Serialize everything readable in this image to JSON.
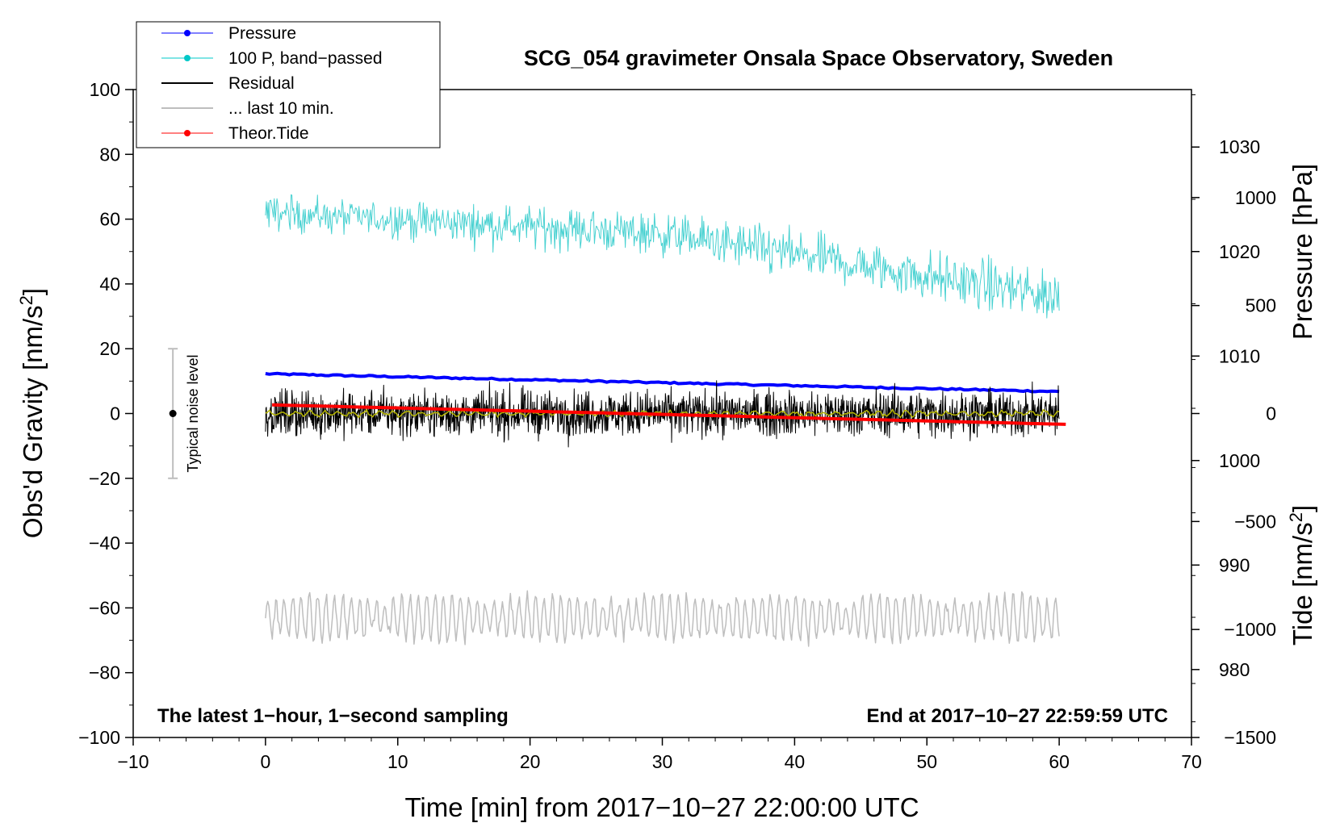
{
  "chart_data": {
    "type": "line",
    "title": "SCG_054 gravimeter Onsala Space Observatory, Sweden",
    "xlabel": "Time [min] from 2017−10−27 22:00:00 UTC",
    "ylabel_main": "Obs'd Gravity [nm/s",
    "ylabel_pressure": "Pressure [hPa]",
    "ylabel_tide": "Tide [nm/s",
    "unit_superscript": "2",
    "unit_close": "]",
    "xlim": [
      -10,
      70
    ],
    "ylim": [
      -100,
      100
    ],
    "pressure_ylim": [
      973.5,
      1035.5
    ],
    "tide_ylim": [
      -1500,
      1500
    ],
    "x_ticks": [
      -10,
      0,
      10,
      20,
      30,
      40,
      50,
      60,
      70
    ],
    "x_tick_labels": [
      "−10",
      "0",
      "10",
      "20",
      "30",
      "40",
      "50",
      "60",
      "70"
    ],
    "y_ticks": [
      -100,
      -80,
      -60,
      -40,
      -20,
      0,
      20,
      40,
      60,
      80,
      100
    ],
    "y_tick_labels": [
      "−100",
      "−80",
      "−60",
      "−40",
      "−20",
      "0",
      "20",
      "40",
      "60",
      "80",
      "100"
    ],
    "pressure_ticks": [
      980,
      990,
      1000,
      1010,
      1020,
      1030
    ],
    "pressure_tick_labels": [
      "980",
      "990",
      "1000",
      "1010",
      "1020",
      "1030"
    ],
    "tide_ticks": [
      -1500,
      -1000,
      -500,
      0,
      500,
      1000
    ],
    "tide_tick_labels": [
      "−1500",
      "−1000",
      "−500",
      "0",
      "500",
      "1000"
    ],
    "legend": [
      {
        "label": "Pressure",
        "color": "#0000ff",
        "marker": true
      },
      {
        "label": "100 P, band−passed",
        "color": "#00c8c8",
        "marker": true
      },
      {
        "label": "Residual",
        "color": "#000000",
        "marker": false
      },
      {
        "label": "... last 10 min.",
        "color": "#bebebe",
        "marker": false
      },
      {
        "label": "Theor.Tide",
        "color": "#ff0000",
        "marker": true
      }
    ],
    "annotations": {
      "bottom_left": "The latest 1−hour, 1−second sampling",
      "bottom_right": "End at 2017−10−27 22:59:59 UTC",
      "noise_label": "Typical noise level"
    },
    "noise_bar": {
      "x": -7,
      "center": 0,
      "low": -20,
      "high": 20
    },
    "series": [
      {
        "name": "Pressure",
        "axis": "pressure",
        "color": "#0000ff",
        "x_range": [
          0,
          60
        ],
        "start_value": 1008.3,
        "end_value": 1006.6
      },
      {
        "name": "100 P, band−passed",
        "axis": "main",
        "color": "#48d1d1",
        "x_range": [
          0,
          60
        ],
        "mean_start": 62,
        "mean_end": 36,
        "amplitude": 6
      },
      {
        "name": "Residual",
        "axis": "main",
        "color": "#000000",
        "x_range": [
          0,
          60
        ],
        "mean": 0,
        "amplitude": 7
      },
      {
        "name": "Residual smoothed",
        "axis": "main",
        "color": "#b5b500",
        "x_range": [
          0,
          60
        ],
        "mean": 0,
        "amplitude": 1
      },
      {
        "name": "... last 10 min.",
        "axis": "main",
        "color": "#bebebe",
        "x_range": [
          0,
          60
        ],
        "mean": -63,
        "amplitude": 7
      },
      {
        "name": "Theor.Tide",
        "axis": "tide",
        "color": "#ff0000",
        "x_range": [
          0.5,
          60.5
        ],
        "start_value": 40,
        "end_value": -50
      }
    ]
  }
}
